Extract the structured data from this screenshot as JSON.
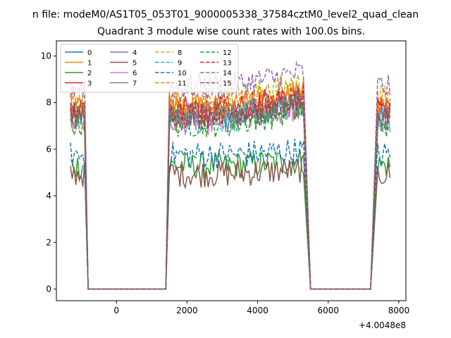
{
  "chart_data": {
    "type": "line",
    "suptitle": "n file: modeM0/AS1T05_053T01_9000005338_37584cztM0_level2_quad_clean",
    "title": "Quadrant 3 module wise count rates with 100.0s bins.",
    "xlabel": "",
    "ylabel": "",
    "offset_text": "+4.0048e8",
    "xlim": [
      -1700,
      8200
    ],
    "ylim": [
      -0.5,
      10.65
    ],
    "x_ticks": [
      0,
      2000,
      4000,
      6000,
      8000
    ],
    "x_tick_labels": [
      "0",
      "2000",
      "4000",
      "6000",
      "8000"
    ],
    "y_ticks": [
      0,
      2,
      4,
      6,
      8,
      10
    ],
    "y_tick_labels": [
      "0",
      "2",
      "4",
      "6",
      "8",
      "10"
    ],
    "grid": false,
    "legend_position": "upper-left",
    "legend_columns": 4,
    "segments": [
      {
        "t_start": -1300,
        "t_end": -900,
        "active": true
      },
      {
        "t_start": -800,
        "t_end": 1400,
        "active": false
      },
      {
        "t_start": 1500,
        "t_end": 5300,
        "active": true
      },
      {
        "t_start": 5500,
        "t_end": 7200,
        "active": false
      },
      {
        "t_start": 7400,
        "t_end": 7750,
        "active": true
      }
    ],
    "series": [
      {
        "name": "0",
        "color": "#1f77b4",
        "dash": "solid",
        "mean": 7.45
      },
      {
        "name": "1",
        "color": "#ff7f0e",
        "dash": "solid",
        "mean": 7.8
      },
      {
        "name": "2",
        "color": "#2ca02c",
        "dash": "solid",
        "mean": 5.3
      },
      {
        "name": "3",
        "color": "#d62728",
        "dash": "solid",
        "mean": 7.7
      },
      {
        "name": "4",
        "color": "#9467bd",
        "dash": "solid",
        "mean": 7.5
      },
      {
        "name": "5",
        "color": "#8c564b",
        "dash": "solid",
        "mean": 4.95
      },
      {
        "name": "6",
        "color": "#e377c2",
        "dash": "solid",
        "mean": 7.2
      },
      {
        "name": "7",
        "color": "#7f7f7f",
        "dash": "solid",
        "mean": 7.35
      },
      {
        "name": "8",
        "color": "#bcbd22",
        "dash": "dashed",
        "mean": 8.2
      },
      {
        "name": "9",
        "color": "#17becf",
        "dash": "dashed",
        "mean": 7.3
      },
      {
        "name": "10",
        "color": "#1f77b4",
        "dash": "dashed",
        "mean": 5.75
      },
      {
        "name": "11",
        "color": "#ff7f0e",
        "dash": "dashed",
        "mean": 8.0
      },
      {
        "name": "12",
        "color": "#2ca02c",
        "dash": "dashed",
        "mean": 7.1
      },
      {
        "name": "13",
        "color": "#d62728",
        "dash": "dashed",
        "mean": 7.6
      },
      {
        "name": "14",
        "color": "#9467bd",
        "dash": "dashed",
        "mean": 8.7
      },
      {
        "name": "15",
        "color": "#8c564b",
        "dash": "dashed",
        "mean": 7.4
      }
    ]
  }
}
